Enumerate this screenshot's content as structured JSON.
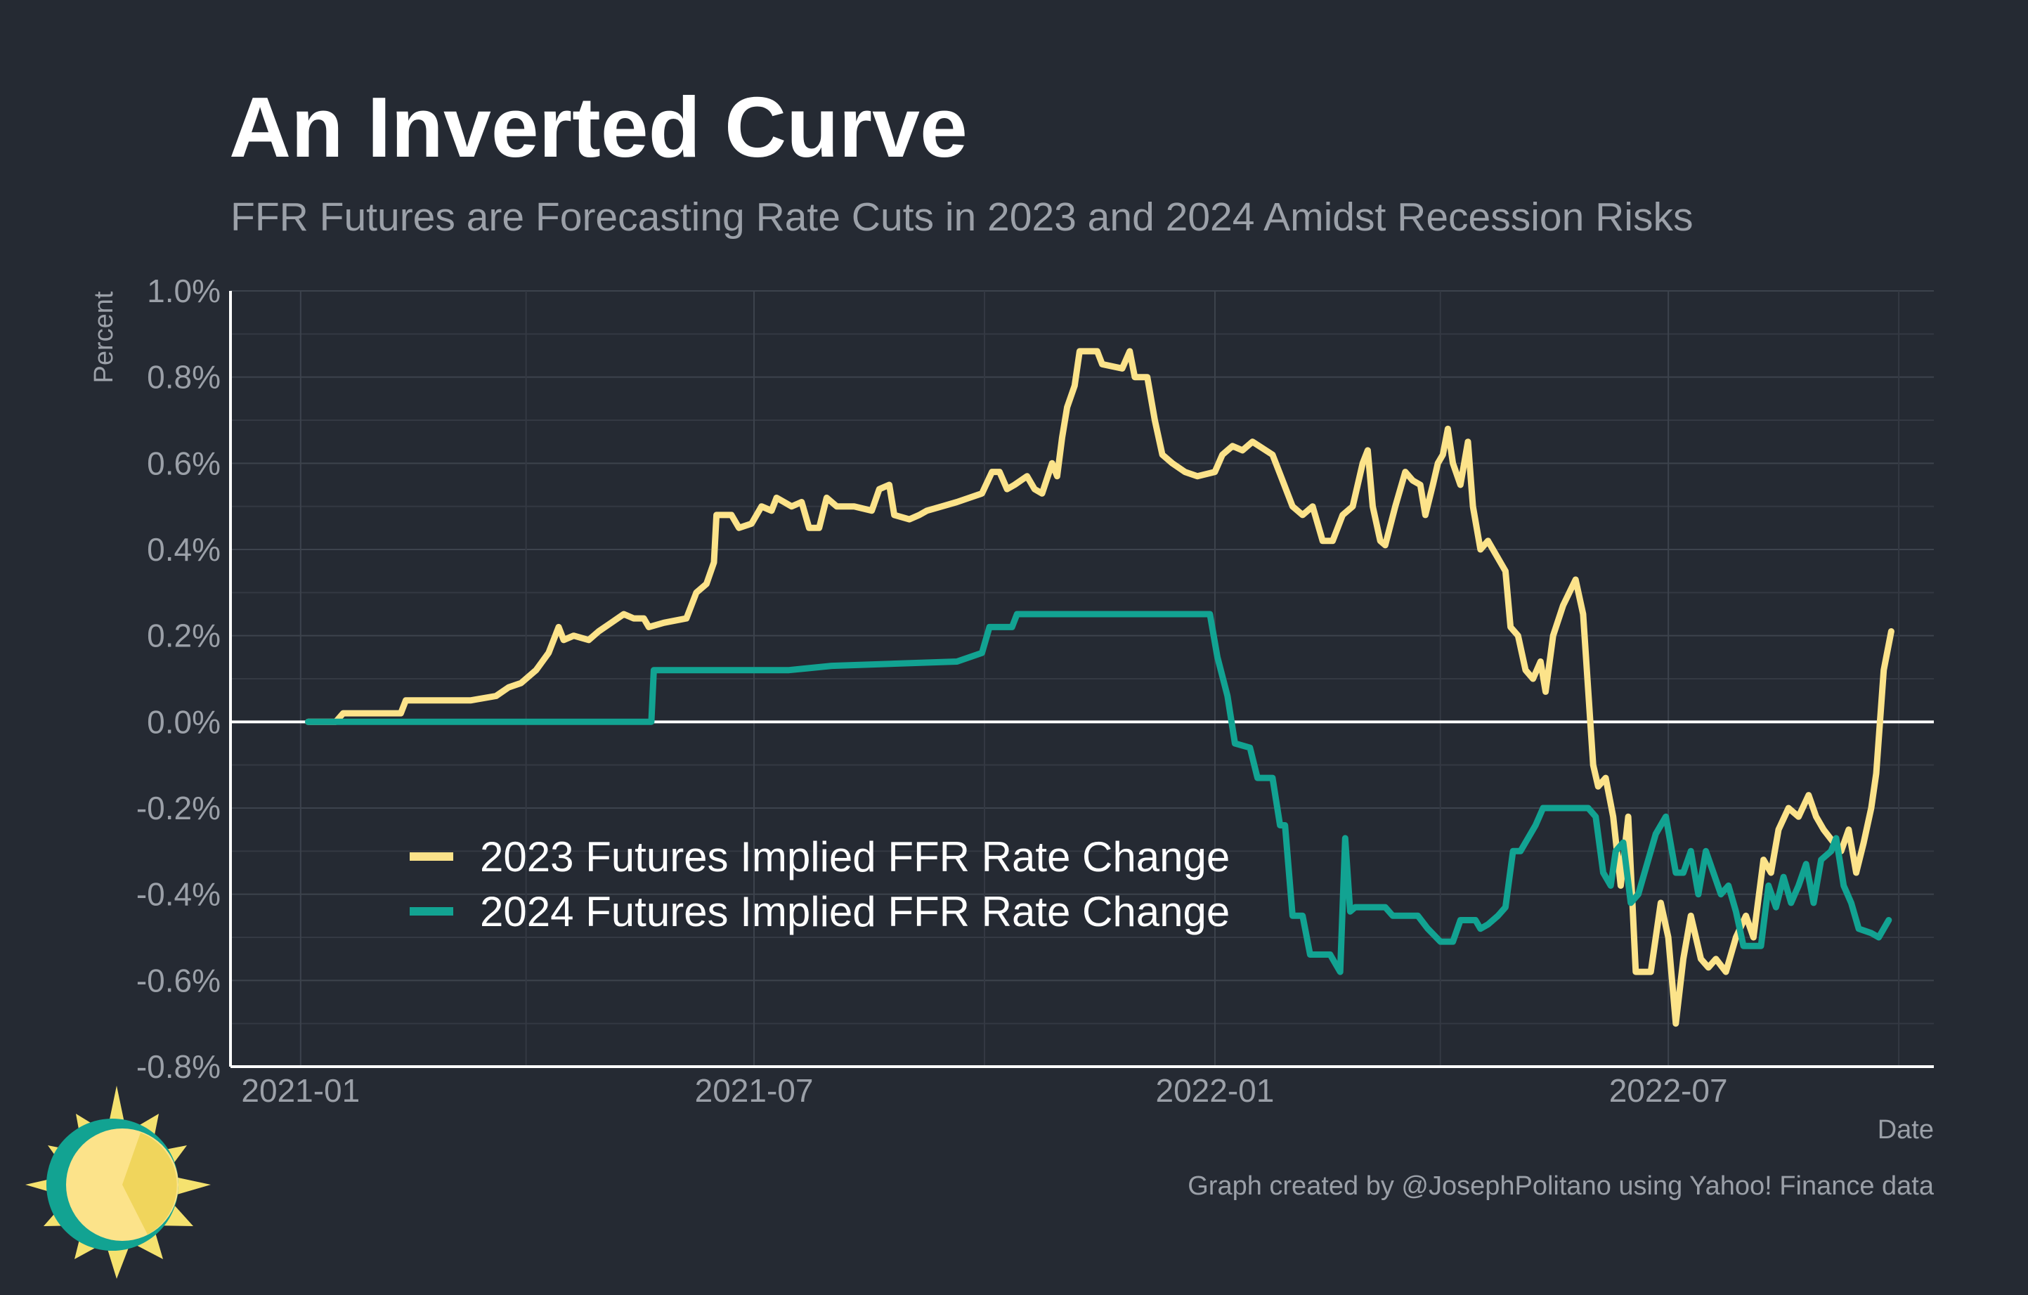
{
  "chart_data": {
    "type": "line",
    "title": "An Inverted Curve",
    "subtitle": "FFR Futures are Forecasting Rate Cuts in 2023 and 2024 Amidst Recession Risks",
    "xlabel": "Date",
    "ylabel": "Percent",
    "caption": "Graph created by @JosephPolitano using Yahoo! Finance data",
    "xlim": [
      "2020-12-04",
      "2022-10-15"
    ],
    "ylim": [
      -0.8,
      1.0
    ],
    "x_ticks": [
      "2021-01",
      "2021-07",
      "2022-01",
      "2022-07"
    ],
    "y_ticks": [
      "1.0%",
      "0.8%",
      "0.6%",
      "0.4%",
      "0.2%",
      "0.0%",
      "-0.2%",
      "-0.4%",
      "-0.6%",
      "-0.8%"
    ],
    "y_tick_values": [
      1.0,
      0.8,
      0.6,
      0.4,
      0.2,
      0.0,
      -0.2,
      -0.4,
      -0.6,
      -0.8
    ],
    "grid": true,
    "zero_line": true,
    "legend_position": "bottom-left",
    "series": [
      {
        "name": "2023 Futures Implied FFR Rate Change",
        "color": "#fce38a",
        "points": [
          [
            "2021-01-04",
            0.0
          ],
          [
            "2021-01-15",
            0.0
          ],
          [
            "2021-01-18",
            0.02
          ],
          [
            "2021-02-01",
            0.02
          ],
          [
            "2021-02-10",
            0.02
          ],
          [
            "2021-02-12",
            0.05
          ],
          [
            "2021-02-26",
            0.05
          ],
          [
            "2021-03-10",
            0.05
          ],
          [
            "2021-03-20",
            0.06
          ],
          [
            "2021-03-25",
            0.08
          ],
          [
            "2021-03-30",
            0.09
          ],
          [
            "2021-04-05",
            0.12
          ],
          [
            "2021-04-10",
            0.16
          ],
          [
            "2021-04-14",
            0.22
          ],
          [
            "2021-04-16",
            0.19
          ],
          [
            "2021-04-20",
            0.2
          ],
          [
            "2021-04-26",
            0.19
          ],
          [
            "2021-04-30",
            0.21
          ],
          [
            "2021-05-05",
            0.23
          ],
          [
            "2021-05-10",
            0.25
          ],
          [
            "2021-05-14",
            0.24
          ],
          [
            "2021-05-18",
            0.24
          ],
          [
            "2021-05-20",
            0.22
          ],
          [
            "2021-05-26",
            0.23
          ],
          [
            "2021-06-04",
            0.24
          ],
          [
            "2021-06-08",
            0.3
          ],
          [
            "2021-06-12",
            0.32
          ],
          [
            "2021-06-15",
            0.37
          ],
          [
            "2021-06-16",
            0.48
          ],
          [
            "2021-06-22",
            0.48
          ],
          [
            "2021-06-25",
            0.45
          ],
          [
            "2021-06-30",
            0.46
          ],
          [
            "2021-07-04",
            0.5
          ],
          [
            "2021-07-08",
            0.49
          ],
          [
            "2021-07-10",
            0.52
          ],
          [
            "2021-07-16",
            0.5
          ],
          [
            "2021-07-20",
            0.51
          ],
          [
            "2021-07-23",
            0.45
          ],
          [
            "2021-07-27",
            0.45
          ],
          [
            "2021-07-30",
            0.52
          ],
          [
            "2021-08-03",
            0.5
          ],
          [
            "2021-08-10",
            0.5
          ],
          [
            "2021-08-17",
            0.49
          ],
          [
            "2021-08-20",
            0.54
          ],
          [
            "2021-08-24",
            0.55
          ],
          [
            "2021-08-26",
            0.48
          ],
          [
            "2021-09-01",
            0.47
          ],
          [
            "2021-09-05",
            0.48
          ],
          [
            "2021-09-08",
            0.49
          ],
          [
            "2021-09-14",
            0.5
          ],
          [
            "2021-09-20",
            0.51
          ],
          [
            "2021-09-25",
            0.52
          ],
          [
            "2021-09-30",
            0.53
          ],
          [
            "2021-10-04",
            0.58
          ],
          [
            "2021-10-07",
            0.58
          ],
          [
            "2021-10-10",
            0.54
          ],
          [
            "2021-10-13",
            0.55
          ],
          [
            "2021-10-18",
            0.57
          ],
          [
            "2021-10-21",
            0.54
          ],
          [
            "2021-10-24",
            0.53
          ],
          [
            "2021-10-28",
            0.6
          ],
          [
            "2021-10-30",
            0.57
          ],
          [
            "2021-11-01",
            0.66
          ],
          [
            "2021-11-03",
            0.73
          ],
          [
            "2021-11-06",
            0.78
          ],
          [
            "2021-11-08",
            0.86
          ],
          [
            "2021-11-15",
            0.86
          ],
          [
            "2021-11-17",
            0.83
          ],
          [
            "2021-11-25",
            0.82
          ],
          [
            "2021-11-28",
            0.86
          ],
          [
            "2021-11-30",
            0.8
          ],
          [
            "2021-12-05",
            0.8
          ],
          [
            "2021-12-08",
            0.7
          ],
          [
            "2021-12-11",
            0.62
          ],
          [
            "2021-12-15",
            0.6
          ],
          [
            "2021-12-20",
            0.58
          ],
          [
            "2021-12-25",
            0.57
          ],
          [
            "2022-01-01",
            0.58
          ],
          [
            "2022-01-04",
            0.62
          ],
          [
            "2022-01-08",
            0.64
          ],
          [
            "2022-01-12",
            0.63
          ],
          [
            "2022-01-16",
            0.65
          ],
          [
            "2022-01-24",
            0.62
          ],
          [
            "2022-01-28",
            0.56
          ],
          [
            "2022-02-01",
            0.5
          ],
          [
            "2022-02-05",
            0.48
          ],
          [
            "2022-02-09",
            0.5
          ],
          [
            "2022-02-13",
            0.42
          ],
          [
            "2022-02-17",
            0.42
          ],
          [
            "2022-02-21",
            0.48
          ],
          [
            "2022-02-25",
            0.5
          ],
          [
            "2022-03-01",
            0.6
          ],
          [
            "2022-03-03",
            0.63
          ],
          [
            "2022-03-05",
            0.5
          ],
          [
            "2022-03-08",
            0.42
          ],
          [
            "2022-03-10",
            0.41
          ],
          [
            "2022-03-14",
            0.5
          ],
          [
            "2022-03-18",
            0.58
          ],
          [
            "2022-03-21",
            0.56
          ],
          [
            "2022-03-24",
            0.55
          ],
          [
            "2022-03-26",
            0.48
          ],
          [
            "2022-03-29",
            0.55
          ],
          [
            "2022-03-31",
            0.6
          ],
          [
            "2022-04-02",
            0.62
          ],
          [
            "2022-04-04",
            0.68
          ],
          [
            "2022-04-06",
            0.6
          ],
          [
            "2022-04-09",
            0.55
          ],
          [
            "2022-04-12",
            0.65
          ],
          [
            "2022-04-14",
            0.5
          ],
          [
            "2022-04-17",
            0.4
          ],
          [
            "2022-04-20",
            0.42
          ],
          [
            "2022-04-24",
            0.38
          ],
          [
            "2022-04-27",
            0.35
          ],
          [
            "2022-04-29",
            0.22
          ],
          [
            "2022-05-02",
            0.2
          ],
          [
            "2022-05-05",
            0.12
          ],
          [
            "2022-05-08",
            0.1
          ],
          [
            "2022-05-11",
            0.14
          ],
          [
            "2022-05-13",
            0.07
          ],
          [
            "2022-05-16",
            0.2
          ],
          [
            "2022-05-20",
            0.27
          ],
          [
            "2022-05-25",
            0.33
          ],
          [
            "2022-05-28",
            0.25
          ],
          [
            "2022-06-01",
            -0.1
          ],
          [
            "2022-06-03",
            -0.15
          ],
          [
            "2022-06-06",
            -0.13
          ],
          [
            "2022-06-09",
            -0.22
          ],
          [
            "2022-06-12",
            -0.38
          ],
          [
            "2022-06-15",
            -0.22
          ],
          [
            "2022-06-18",
            -0.58
          ],
          [
            "2022-06-24",
            -0.58
          ],
          [
            "2022-06-28",
            -0.42
          ],
          [
            "2022-07-01",
            -0.5
          ],
          [
            "2022-07-04",
            -0.7
          ],
          [
            "2022-07-07",
            -0.55
          ],
          [
            "2022-07-10",
            -0.45
          ],
          [
            "2022-07-14",
            -0.55
          ],
          [
            "2022-07-17",
            -0.57
          ],
          [
            "2022-07-20",
            -0.55
          ],
          [
            "2022-07-24",
            -0.58
          ],
          [
            "2022-07-28",
            -0.5
          ],
          [
            "2022-08-01",
            -0.45
          ],
          [
            "2022-08-04",
            -0.5
          ],
          [
            "2022-08-08",
            -0.32
          ],
          [
            "2022-08-11",
            -0.35
          ],
          [
            "2022-08-14",
            -0.25
          ],
          [
            "2022-08-18",
            -0.2
          ],
          [
            "2022-08-22",
            -0.22
          ],
          [
            "2022-08-26",
            -0.17
          ],
          [
            "2022-08-29",
            -0.22
          ],
          [
            "2022-09-01",
            -0.25
          ],
          [
            "2022-09-05",
            -0.28
          ],
          [
            "2022-09-08",
            -0.3
          ],
          [
            "2022-09-11",
            -0.25
          ],
          [
            "2022-09-14",
            -0.35
          ],
          [
            "2022-09-17",
            -0.28
          ],
          [
            "2022-09-20",
            -0.2
          ],
          [
            "2022-09-22",
            -0.12
          ],
          [
            "2022-09-25",
            0.12
          ],
          [
            "2022-09-28",
            0.21
          ]
        ]
      },
      {
        "name": "2024 Futures Implied FFR Rate Change",
        "color": "#12a392",
        "points": [
          [
            "2021-01-04",
            0.0
          ],
          [
            "2021-05-21",
            0.0
          ],
          [
            "2021-05-22",
            0.12
          ],
          [
            "2021-07-15",
            0.12
          ],
          [
            "2021-08-01",
            0.13
          ],
          [
            "2021-09-20",
            0.14
          ],
          [
            "2021-09-30",
            0.16
          ],
          [
            "2021-10-03",
            0.22
          ],
          [
            "2021-10-12",
            0.22
          ],
          [
            "2021-10-14",
            0.25
          ],
          [
            "2021-12-30",
            0.25
          ],
          [
            "2022-01-02",
            0.15
          ],
          [
            "2022-01-06",
            0.06
          ],
          [
            "2022-01-09",
            -0.05
          ],
          [
            "2022-01-15",
            -0.06
          ],
          [
            "2022-01-18",
            -0.13
          ],
          [
            "2022-01-24",
            -0.13
          ],
          [
            "2022-01-27",
            -0.24
          ],
          [
            "2022-01-29",
            -0.24
          ],
          [
            "2022-02-01",
            -0.45
          ],
          [
            "2022-02-05",
            -0.45
          ],
          [
            "2022-02-08",
            -0.54
          ],
          [
            "2022-02-16",
            -0.54
          ],
          [
            "2022-02-20",
            -0.58
          ],
          [
            "2022-02-22",
            -0.27
          ],
          [
            "2022-02-24",
            -0.44
          ],
          [
            "2022-02-26",
            -0.43
          ],
          [
            "2022-03-10",
            -0.43
          ],
          [
            "2022-03-13",
            -0.45
          ],
          [
            "2022-03-23",
            -0.45
          ],
          [
            "2022-03-27",
            -0.48
          ],
          [
            "2022-04-01",
            -0.51
          ],
          [
            "2022-04-06",
            -0.51
          ],
          [
            "2022-04-09",
            -0.46
          ],
          [
            "2022-04-15",
            -0.46
          ],
          [
            "2022-04-17",
            -0.48
          ],
          [
            "2022-04-20",
            -0.47
          ],
          [
            "2022-04-24",
            -0.45
          ],
          [
            "2022-04-27",
            -0.43
          ],
          [
            "2022-04-30",
            -0.3
          ],
          [
            "2022-05-03",
            -0.3
          ],
          [
            "2022-05-06",
            -0.27
          ],
          [
            "2022-05-09",
            -0.24
          ],
          [
            "2022-05-12",
            -0.2
          ],
          [
            "2022-05-20",
            -0.2
          ],
          [
            "2022-05-30",
            -0.2
          ],
          [
            "2022-06-02",
            -0.22
          ],
          [
            "2022-06-05",
            -0.35
          ],
          [
            "2022-06-08",
            -0.38
          ],
          [
            "2022-06-10",
            -0.3
          ],
          [
            "2022-06-13",
            -0.28
          ],
          [
            "2022-06-16",
            -0.42
          ],
          [
            "2022-06-19",
            -0.4
          ],
          [
            "2022-06-23",
            -0.32
          ],
          [
            "2022-06-26",
            -0.26
          ],
          [
            "2022-06-30",
            -0.22
          ],
          [
            "2022-07-04",
            -0.35
          ],
          [
            "2022-07-07",
            -0.35
          ],
          [
            "2022-07-10",
            -0.3
          ],
          [
            "2022-07-13",
            -0.4
          ],
          [
            "2022-07-16",
            -0.3
          ],
          [
            "2022-07-19",
            -0.35
          ],
          [
            "2022-07-22",
            -0.4
          ],
          [
            "2022-07-25",
            -0.38
          ],
          [
            "2022-07-28",
            -0.44
          ],
          [
            "2022-07-31",
            -0.52
          ],
          [
            "2022-08-04",
            -0.52
          ],
          [
            "2022-08-07",
            -0.52
          ],
          [
            "2022-08-10",
            -0.38
          ],
          [
            "2022-08-13",
            -0.43
          ],
          [
            "2022-08-16",
            -0.36
          ],
          [
            "2022-08-19",
            -0.42
          ],
          [
            "2022-08-22",
            -0.38
          ],
          [
            "2022-08-25",
            -0.33
          ],
          [
            "2022-08-28",
            -0.42
          ],
          [
            "2022-08-31",
            -0.32
          ],
          [
            "2022-09-04",
            -0.3
          ],
          [
            "2022-09-06",
            -0.27
          ],
          [
            "2022-09-09",
            -0.38
          ],
          [
            "2022-09-12",
            -0.42
          ],
          [
            "2022-09-15",
            -0.48
          ],
          [
            "2022-09-20",
            -0.49
          ],
          [
            "2022-09-23",
            -0.5
          ],
          [
            "2022-09-27",
            -0.46
          ]
        ]
      }
    ]
  }
}
